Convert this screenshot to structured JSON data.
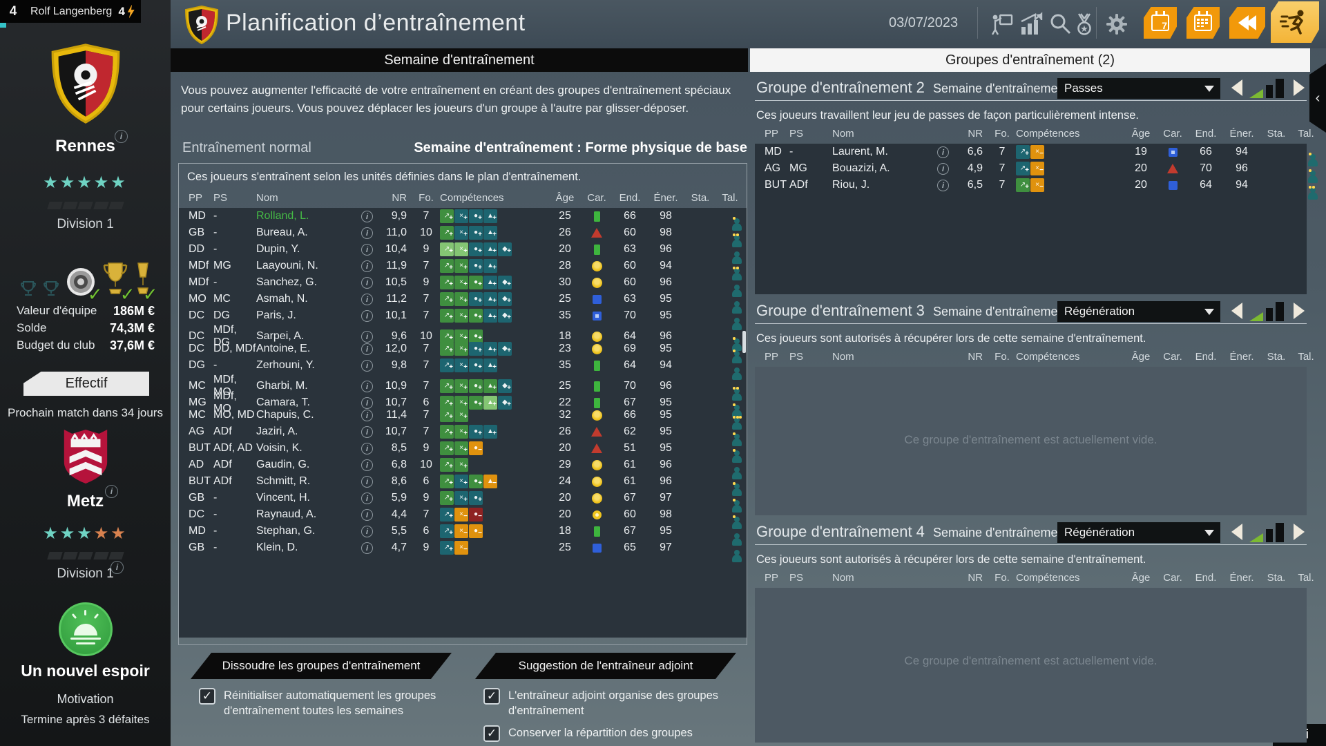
{
  "user_bar": {
    "level": "4",
    "name": "Rolf Langenberg",
    "energy": "4"
  },
  "header": {
    "title": "Planification d’entraînement",
    "date": "03/07/2023",
    "calendar7_label": "7"
  },
  "tabs": {
    "week": "Semaine d'entraînement",
    "groups": "Groupes d'entraînement (2)"
  },
  "sidebar": {
    "club": {
      "name": "Rennes",
      "division": "Division 1",
      "stars": 5
    },
    "finance": [
      {
        "label": "Valeur d'équipe",
        "value": "186M €"
      },
      {
        "label": "Solde",
        "value": "74,3M €"
      },
      {
        "label": "Budget du club",
        "value": "37,6M €"
      }
    ],
    "effectif_button": "Effectif",
    "next_match": "Prochain match dans 34 jours",
    "opponent": {
      "name": "Metz",
      "division": "Division 1",
      "stars_teal": 3,
      "stars_orange": 2
    },
    "story": {
      "title": "Un nouvel espoir",
      "subtitle": "Motivation",
      "condition": "Termine après 3 défaites"
    }
  },
  "main": {
    "intro": "Vous pouvez augmenter l'efficacité de votre entraînement en créant des groupes d'entraînement spéciaux pour certains joueurs. Vous pouvez déplacer les joueurs d'un groupe à l'autre par glisser-déposer.",
    "section_left": "Entraînement normal",
    "section_right": "Semaine d'entraînement : Forme physique de base",
    "panel_desc": "Ces joueurs s'entraînent selon les unités définies dans le plan d'entraînement.",
    "columns": [
      "PP",
      "PS",
      "Nom",
      "NR",
      "Fo.",
      "Compétences",
      "Âge",
      "Car.",
      "End.",
      "Éner.",
      "Sta.",
      "Tal."
    ],
    "players": [
      {
        "pp": "MD",
        "ps": "-",
        "nom": "Rolland, L.",
        "green": true,
        "nr": "9,9",
        "fo": "7",
        "skills": [
          "t-green",
          "t-teal",
          "t-teal",
          "t-teal"
        ],
        "age": "25",
        "car": "green",
        "end": "66",
        "ener": "98",
        "sta": "",
        "tal": 1
      },
      {
        "pp": "GB",
        "ps": "-",
        "nom": "Bureau, A.",
        "nr": "11,0",
        "fo": "10",
        "skills": [
          "t-green",
          "t-teal",
          "t-teal",
          "t-teal"
        ],
        "age": "26",
        "car": "red",
        "end": "60",
        "ener": "98",
        "sta": "",
        "tal": 2
      },
      {
        "pp": "DD",
        "ps": "-",
        "nom": "Dupin, Y.",
        "nr": "10,4",
        "fo": "9",
        "skills": [
          "t-lgreen",
          "t-lgreen",
          "t-teal",
          "t-teal",
          "t-teal"
        ],
        "age": "20",
        "car": "green",
        "end": "63",
        "ener": "96",
        "sta": "",
        "tal": 0
      },
      {
        "pp": "MDf",
        "ps": "MG",
        "nom": "Laayouni, N.",
        "nr": "11,9",
        "fo": "7",
        "skills": [
          "t-green",
          "t-green",
          "t-teal",
          "t-teal"
        ],
        "age": "28",
        "car": "yellow",
        "end": "60",
        "ener": "94",
        "sta": "",
        "tal": 2
      },
      {
        "pp": "MDf",
        "ps": "-",
        "nom": "Sanchez, G.",
        "nr": "10,5",
        "fo": "9",
        "skills": [
          "t-green",
          "t-green",
          "t-green",
          "t-teal",
          "t-teal"
        ],
        "age": "30",
        "car": "yellow",
        "end": "60",
        "ener": "96",
        "sta": "",
        "tal": 0
      },
      {
        "pp": "MO",
        "ps": "MC",
        "nom": "Asmah, N.",
        "nr": "11,2",
        "fo": "7",
        "skills": [
          "t-green",
          "t-green",
          "t-teal",
          "t-teal",
          "t-teal"
        ],
        "age": "25",
        "car": "blue",
        "end": "63",
        "ener": "95",
        "sta": "",
        "tal": 0
      },
      {
        "pp": "DC",
        "ps": "DG",
        "nom": "Paris, J.",
        "nr": "10,1",
        "fo": "7",
        "skills": [
          "t-green",
          "t-green",
          "t-green",
          "t-teal",
          "t-teal"
        ],
        "age": "35",
        "car": "blue-dot",
        "end": "70",
        "ener": "95",
        "sta": "",
        "tal": 0
      },
      {
        "pp": "DC",
        "ps": "MDf, DG",
        "nom": "Sarpei, A.",
        "nr": "9,6",
        "fo": "10",
        "skills": [
          "t-green",
          "t-green",
          "t-green"
        ],
        "age": "18",
        "car": "yellow",
        "end": "64",
        "ener": "96",
        "sta": "",
        "tal": 1
      },
      {
        "pp": "DC",
        "ps": "DD, MDf",
        "nom": "Antoine, E.",
        "nr": "12,0",
        "fo": "7",
        "skills": [
          "t-green",
          "t-green",
          "t-teal",
          "t-teal",
          "t-teal"
        ],
        "age": "23",
        "car": "yellow",
        "end": "69",
        "ener": "95",
        "sta": "",
        "tal": 1
      },
      {
        "pp": "DG",
        "ps": "-",
        "nom": "Zerhouni, Y.",
        "nr": "9,8",
        "fo": "7",
        "skills": [
          "t-teal",
          "t-teal",
          "t-teal",
          "t-teal"
        ],
        "age": "35",
        "car": "green",
        "end": "64",
        "ener": "94",
        "sta": "",
        "tal": 0
      },
      {
        "pp": "MC",
        "ps": "MDf, MO",
        "nom": "Gharbi, M.",
        "nr": "10,9",
        "fo": "7",
        "skills": [
          "t-green",
          "t-green",
          "t-green",
          "t-green",
          "t-teal"
        ],
        "age": "25",
        "car": "green",
        "end": "70",
        "ener": "96",
        "sta": "",
        "tal": 2
      },
      {
        "pp": "MG",
        "ps": "MDf, MO",
        "nom": "Camara, T.",
        "nr": "10,7",
        "fo": "6",
        "skills": [
          "t-green",
          "t-green",
          "t-green",
          "t-lgreen",
          "t-teal"
        ],
        "age": "22",
        "car": "green",
        "end": "67",
        "ener": "95",
        "sta": "",
        "tal": 1
      },
      {
        "pp": "MC",
        "ps": "MO, MD",
        "nom": "Chapuis, C.",
        "nr": "11,4",
        "fo": "7",
        "skills": [
          "t-green",
          "t-green"
        ],
        "age": "32",
        "car": "yellow",
        "end": "66",
        "ener": "95",
        "sta": "",
        "tal": 3
      },
      {
        "pp": "AG",
        "ps": "ADf",
        "nom": "Jaziri, A.",
        "nr": "10,7",
        "fo": "7",
        "skills": [
          "t-green",
          "t-green",
          "t-teal",
          "t-teal"
        ],
        "age": "26",
        "car": "red",
        "end": "62",
        "ener": "95",
        "sta": "",
        "tal": 1
      },
      {
        "pp": "BUT",
        "ps": "ADf, AD",
        "nom": "Voisin, K.",
        "nr": "8,5",
        "fo": "9",
        "skills": [
          "t-green",
          "t-green",
          "t-orange"
        ],
        "age": "20",
        "car": "red",
        "end": "51",
        "ener": "95",
        "sta": "",
        "tal": 1
      },
      {
        "pp": "AD",
        "ps": "ADf",
        "nom": "Gaudin, G.",
        "nr": "6,8",
        "fo": "10",
        "skills": [
          "t-green",
          "t-green"
        ],
        "age": "29",
        "car": "yellow",
        "end": "61",
        "ener": "96",
        "sta": "",
        "tal": 0
      },
      {
        "pp": "BUT",
        "ps": "ADf",
        "nom": "Schmitt, R.",
        "nr": "8,6",
        "fo": "6",
        "skills": [
          "t-green",
          "t-teal",
          "t-green",
          "t-orange"
        ],
        "age": "24",
        "car": "yellow",
        "end": "61",
        "ener": "96",
        "sta": "",
        "tal": 1
      },
      {
        "pp": "GB",
        "ps": "-",
        "nom": "Vincent, H.",
        "nr": "5,9",
        "fo": "9",
        "skills": [
          "t-green",
          "t-teal",
          "t-teal"
        ],
        "age": "20",
        "car": "yellow",
        "end": "67",
        "ener": "97",
        "sta": "",
        "tal": 1
      },
      {
        "pp": "DC",
        "ps": "-",
        "nom": "Raynaud, A.",
        "nr": "4,4",
        "fo": "7",
        "skills": [
          "t-teal",
          "t-orange",
          "t-red"
        ],
        "age": "20",
        "car": "yellow-dot",
        "end": "60",
        "ener": "98",
        "sta": "",
        "tal": 1
      },
      {
        "pp": "MD",
        "ps": "-",
        "nom": "Stephan, G.",
        "nr": "5,5",
        "fo": "6",
        "skills": [
          "t-teal",
          "t-orange",
          "t-orange"
        ],
        "age": "18",
        "car": "green",
        "end": "67",
        "ener": "95",
        "sta": "",
        "tal": 0
      },
      {
        "pp": "GB",
        "ps": "-",
        "nom": "Klein, D.",
        "nr": "4,7",
        "fo": "9",
        "skills": [
          "t-teal",
          "t-orange"
        ],
        "age": "25",
        "car": "blue",
        "end": "65",
        "ener": "97",
        "sta": "",
        "tal": 0
      }
    ],
    "buttons": [
      "Dissoudre les groupes d'entraînement",
      "Suggestion de l'entraîneur adjoint"
    ],
    "checkboxes": [
      "Réinitialiser automatiquement les groupes d'entraînement toutes les semaines",
      "L'entraîneur adjoint organise des groupes d'entraînement",
      "Conserver la répartition des groupes"
    ]
  },
  "groups": [
    {
      "title": "Groupe d'entraînement 2",
      "week_label": "Semaine d'entraînement",
      "dropdown": "Passes",
      "desc": "Ces joueurs travaillent leur jeu de passes de façon particulièrement intense.",
      "empty": null,
      "players": [
        {
          "pp": "MD",
          "ps": "-",
          "nom": "Laurent, M.",
          "nr": "6,6",
          "fo": "7",
          "skills": [
            "t-teal",
            "t-orange"
          ],
          "age": "19",
          "car": "blue-dot",
          "end": "66",
          "ener": "94",
          "sta": "",
          "tal": 1
        },
        {
          "pp": "AG",
          "ps": "MG",
          "nom": "Bouazizi, A.",
          "nr": "4,9",
          "fo": "7",
          "skills": [
            "t-teal",
            "t-orange"
          ],
          "age": "20",
          "car": "red",
          "end": "70",
          "ener": "96",
          "sta": "",
          "tal": 1
        },
        {
          "pp": "BUT",
          "ps": "ADf",
          "nom": "Riou, J.",
          "nr": "6,5",
          "fo": "7",
          "skills": [
            "t-green",
            "t-orange"
          ],
          "age": "20",
          "car": "blue",
          "end": "64",
          "ener": "94",
          "sta": "",
          "tal": 2
        }
      ]
    },
    {
      "title": "Groupe d'entraînement 3",
      "week_label": "Semaine d'entraînement",
      "dropdown": "Régénération",
      "desc": "Ces joueurs sont autorisés à récupérer lors de cette semaine d'entraînement.",
      "empty": "Ce groupe d'entraînement est actuellement vide.",
      "players": []
    },
    {
      "title": "Groupe d'entraînement 4",
      "week_label": "Semaine d'entraînement",
      "dropdown": "Régénération",
      "desc": "Ces joueurs sont autorisés à récupérer lors de cette semaine d'entraînement.",
      "empty": "Ce groupe d'entraînement est actuellement vide.",
      "players": []
    }
  ],
  "colors": {
    "accent_orange": "#f2990a",
    "selected_orange": "#f6bf4f",
    "teal_star": "#6fd3c3",
    "orange_star": "#d8824f",
    "green_check": "#72c232",
    "green_name": "#45b945",
    "tile_green": "#3f8f3f",
    "tile_teal": "#1d6570",
    "tile_orange": "#e0920e",
    "tile_red": "#8e2222",
    "car_green": "#3eb53e",
    "car_red": "#c23b2e",
    "car_yellow": "#f0c51f",
    "car_blue": "#2f5fd9"
  }
}
